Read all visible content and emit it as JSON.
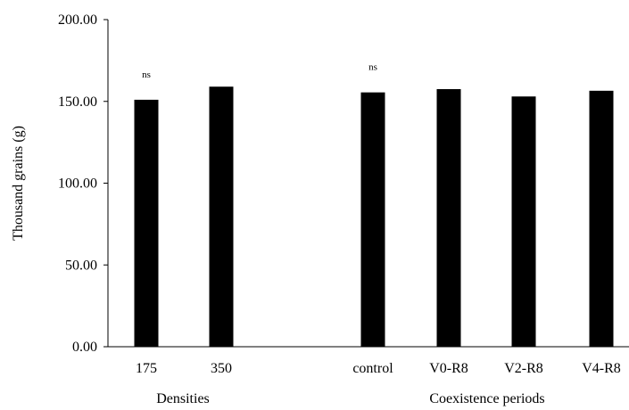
{
  "chart_data": {
    "type": "bar",
    "ylabel": "Thousand grains (g)",
    "ylim": [
      0,
      200
    ],
    "y_ticks": [
      "0.00",
      "50.00",
      "100.00",
      "150.00",
      "200.00"
    ],
    "grid": false,
    "legend": "none",
    "bar_color": "#000000",
    "groups": [
      {
        "name": "Densities",
        "categories": [
          "175",
          "350"
        ],
        "values": [
          151,
          159
        ],
        "annotation": "ns"
      },
      {
        "name": "Coexistence periods",
        "categories": [
          "control",
          "V0-R8",
          "V2-R8",
          "V4-R8"
        ],
        "values": [
          155.5,
          157.5,
          153,
          156.5
        ],
        "annotation": "ns"
      }
    ]
  }
}
